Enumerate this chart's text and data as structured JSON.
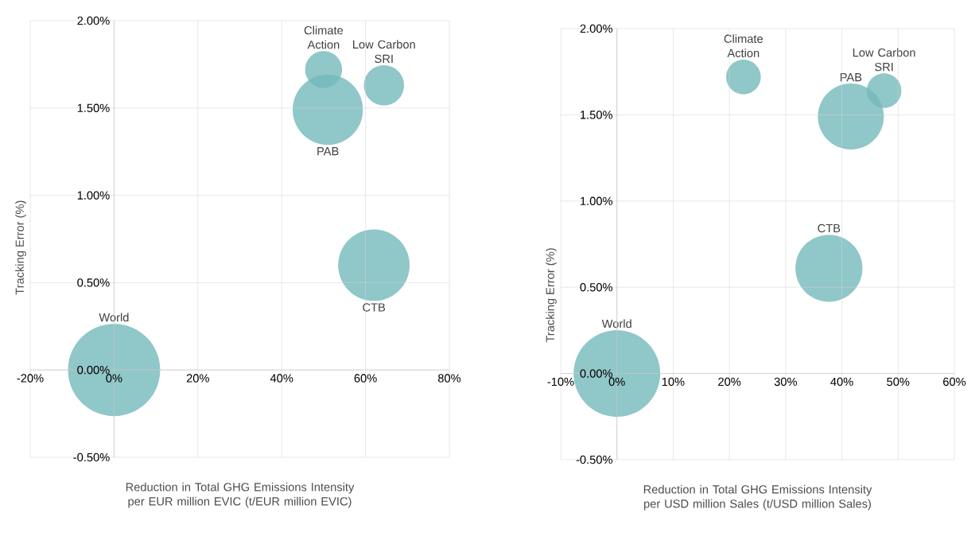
{
  "chart_data": [
    {
      "type": "bubble",
      "xlabel": "Reduction in Total GHG Emissions Intensity per EUR million EVIC (t/EUR million EVIC)",
      "ylabel": "Tracking Error (%)",
      "grid": true,
      "series": [
        {
          "name": "World",
          "color": "#74b9bc",
          "x": [
            0
          ],
          "values": [
            0
          ],
          "sizes": [
            1
          ]
        },
        {
          "name": "CTB",
          "color": "#74b9bc",
          "x": [
            62
          ],
          "values": [
            0.6
          ],
          "sizes": [
            0.6
          ]
        },
        {
          "name": "PAB",
          "color": "#74b9bc",
          "x": [
            51
          ],
          "values": [
            1.49
          ],
          "sizes": [
            0.58
          ]
        },
        {
          "name": "Climate Action",
          "color": "#74b9bc",
          "x": [
            50
          ],
          "values": [
            1.72
          ],
          "sizes": [
            0.16
          ]
        },
        {
          "name": "Low Carbon SRI",
          "color": "#74b9bc",
          "x": [
            64.4
          ],
          "values": [
            1.63
          ],
          "sizes": [
            0.19
          ]
        }
      ],
      "xlim": [
        -20,
        80
      ],
      "ylim": [
        -0.5,
        2.0
      ],
      "xticks": [
        {
          "value": -20,
          "label": "-20%"
        },
        {
          "value": 0,
          "label": "0%"
        },
        {
          "value": 20,
          "label": "20%"
        },
        {
          "value": 40,
          "label": "40%"
        },
        {
          "value": 60,
          "label": "60%"
        },
        {
          "value": 80,
          "label": "80%"
        }
      ],
      "yticks": [
        {
          "value": -0.5,
          "label": "-0.50%"
        },
        {
          "value": 0,
          "label": "0.00%"
        },
        {
          "value": 0.5,
          "label": "0.50%"
        },
        {
          "value": 1.0,
          "label": "1.00%"
        },
        {
          "value": 1.5,
          "label": "1.50%"
        },
        {
          "value": 2.0,
          "label": "2.00%"
        }
      ]
    },
    {
      "type": "bubble",
      "xlabel": "Reduction in Total GHG Emissions Intensity per USD million Sales (t/USD million Sales)",
      "ylabel": "Tracking Error (%)",
      "grid": true,
      "series": [
        {
          "name": "World",
          "color": "#74b9bc",
          "x": [
            0
          ],
          "values": [
            0
          ],
          "sizes": [
            1
          ]
        },
        {
          "name": "CTB",
          "color": "#74b9bc",
          "x": [
            37.7
          ],
          "values": [
            0.61
          ],
          "sizes": [
            0.6
          ]
        },
        {
          "name": "PAB",
          "color": "#74b9bc",
          "x": [
            41.6
          ],
          "values": [
            1.49
          ],
          "sizes": [
            0.58
          ]
        },
        {
          "name": "Climate Action",
          "color": "#74b9bc",
          "x": [
            22.5
          ],
          "values": [
            1.72
          ],
          "sizes": [
            0.16
          ]
        },
        {
          "name": "Low Carbon SRI",
          "color": "#74b9bc",
          "x": [
            47.5
          ],
          "values": [
            1.64
          ],
          "sizes": [
            0.16
          ]
        }
      ],
      "xlim": [
        -10,
        60
      ],
      "ylim": [
        -0.5,
        2.0
      ],
      "xticks": [
        {
          "value": -10,
          "label": "-10%"
        },
        {
          "value": 0,
          "label": "0%"
        },
        {
          "value": 10,
          "label": "10%"
        },
        {
          "value": 20,
          "label": "20%"
        },
        {
          "value": 30,
          "label": "30%"
        },
        {
          "value": 40,
          "label": "40%"
        },
        {
          "value": 50,
          "label": "50%"
        },
        {
          "value": 60,
          "label": "60%"
        }
      ],
      "yticks": [
        {
          "value": -0.5,
          "label": "-0.50%"
        },
        {
          "value": 0,
          "label": "0.00%"
        },
        {
          "value": 0.5,
          "label": "0.50%"
        },
        {
          "value": 1.0,
          "label": "1.00%"
        },
        {
          "value": 1.5,
          "label": "1.50%"
        },
        {
          "value": 2.0,
          "label": "2.00%"
        }
      ]
    }
  ]
}
